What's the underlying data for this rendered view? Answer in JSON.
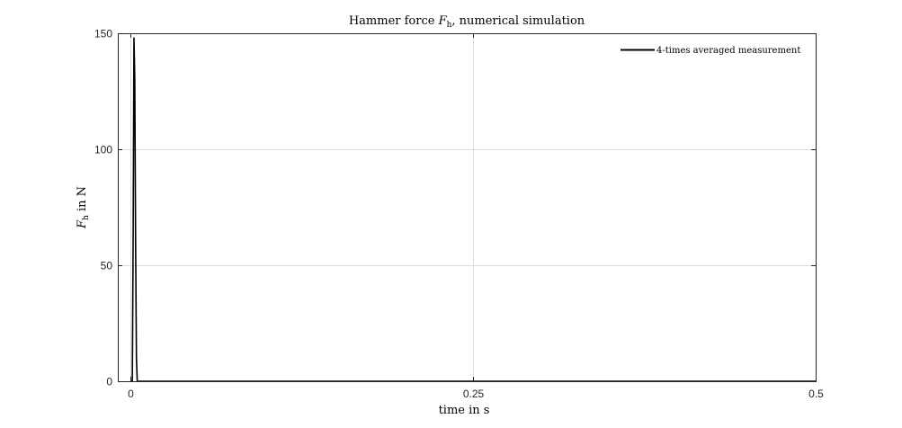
{
  "chart_data": {
    "type": "line",
    "title_main": "Hammer force ",
    "title_symbol": "F",
    "title_subscript": "h",
    "title_rest": ", numerical simulation",
    "xlabel": "time in s",
    "ylabel_symbol": "F",
    "ylabel_subscript": "h",
    "ylabel_rest": " in N",
    "xlim": [
      0,
      0.5
    ],
    "ylim": [
      0,
      150
    ],
    "xticks": [
      0,
      0.25,
      0.5
    ],
    "xtick_labels": [
      "0",
      "0.25",
      "0.5"
    ],
    "yticks": [
      0,
      50,
      100,
      150
    ],
    "ytick_labels": [
      "0",
      "50",
      "100",
      "150"
    ],
    "grid": true,
    "legend_position": "top-right",
    "series": [
      {
        "name": "4-times averaged measurement",
        "color": "#000000",
        "x": [
          0,
          0.0008,
          0.0014,
          0.002,
          0.0026,
          0.0032,
          0.0038,
          0.0044,
          0.005,
          0.0056,
          0.0062,
          0.008,
          0.02,
          0.1,
          0.25,
          0.4,
          0.5
        ],
        "y": [
          0,
          0,
          0,
          60,
          148,
          130,
          60,
          10,
          0,
          0,
          0,
          0,
          0,
          0,
          0,
          0,
          0
        ]
      }
    ]
  }
}
